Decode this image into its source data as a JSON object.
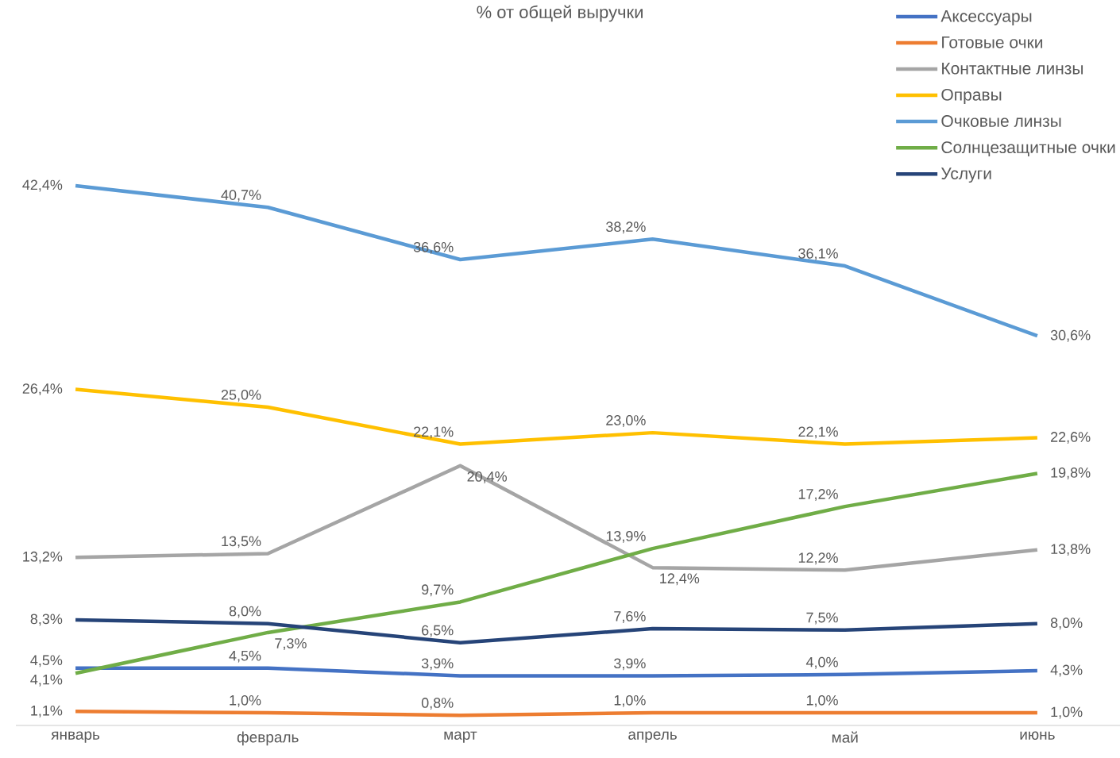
{
  "chart_data": {
    "type": "line",
    "title": "% от общей выручки",
    "categories": [
      "январь",
      "февраль",
      "март",
      "апрель",
      "май",
      "июнь"
    ],
    "series": [
      {
        "name": "Аксессуары",
        "color": "#4472c4",
        "values": [
          4.5,
          4.5,
          3.9,
          3.9,
          4.0,
          4.3
        ],
        "value_labels": [
          "4,5%",
          "4,5%",
          "3,9%",
          "3,9%",
          "4,0%",
          "4,3%"
        ]
      },
      {
        "name": "Готовые очки",
        "color": "#ed7d31",
        "values": [
          1.1,
          1.0,
          0.8,
          1.0,
          1.0,
          1.0
        ],
        "value_labels": [
          "1,1%",
          "1,0%",
          "0,8%",
          "1,0%",
          "1,0%",
          "1,0%"
        ]
      },
      {
        "name": "Контактные линзы",
        "color": "#a5a5a5",
        "values": [
          13.2,
          13.5,
          20.4,
          12.4,
          12.2,
          13.8
        ],
        "value_labels": [
          "13,2%",
          "13,5%",
          "20,4%",
          "12,4%",
          "12,2%",
          "13,8%"
        ]
      },
      {
        "name": "Оправы",
        "color": "#ffc000",
        "values": [
          26.4,
          25.0,
          22.1,
          23.0,
          22.1,
          22.6
        ],
        "value_labels": [
          "26,4%",
          "25,0%",
          "22,1%",
          "23,0%",
          "22,1%",
          "22,6%"
        ]
      },
      {
        "name": "Очковые линзы",
        "color": "#5b9bd5",
        "values": [
          42.4,
          40.7,
          36.6,
          38.2,
          36.1,
          30.6
        ],
        "value_labels": [
          "42,4%",
          "40,7%",
          "36,6%",
          "38,2%",
          "36,1%",
          "30,6%"
        ]
      },
      {
        "name": "Солнцезащитные очки",
        "color": "#70ad47",
        "values": [
          4.1,
          7.3,
          9.7,
          13.9,
          17.2,
          19.8
        ],
        "value_labels": [
          "4,1%",
          "7,3%",
          "9,7%",
          "13,9%",
          "17,2%",
          "19,8%"
        ]
      },
      {
        "name": "Услуги",
        "color": "#264478",
        "values": [
          8.3,
          8.0,
          6.5,
          7.6,
          7.5,
          8.0
        ],
        "value_labels": [
          "8,3%",
          "8,0%",
          "6,5%",
          "7,6%",
          "7,5%",
          "8,0%"
        ]
      }
    ],
    "legend": "top right",
    "marker": "none",
    "line_style": "solid",
    "tick_labels": "x"
  }
}
